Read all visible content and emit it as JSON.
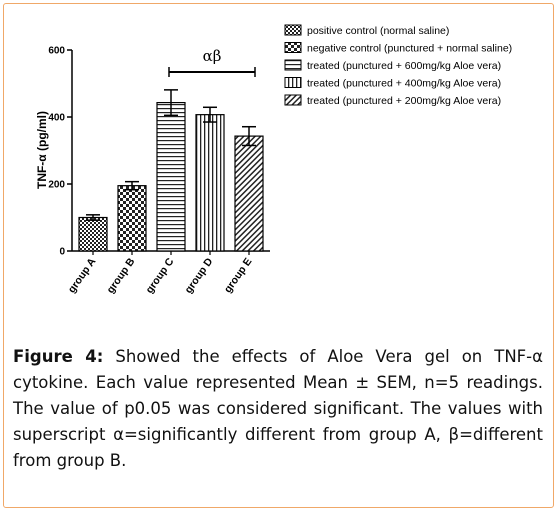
{
  "chart_data": {
    "type": "bar",
    "categories": [
      "group A",
      "group B",
      "group C",
      "group D",
      "group E"
    ],
    "values": [
      100,
      195,
      443,
      407,
      343
    ],
    "errors": [
      8,
      12,
      38,
      22,
      28
    ],
    "ylabel": "TNF-α (pg/ml)",
    "ylim": [
      0,
      600
    ],
    "yticks": [
      0,
      200,
      400,
      600
    ],
    "grid": false,
    "legend_position": "top-right",
    "legend": [
      {
        "label": "positive control (normal saline)",
        "pattern": "checker-fine"
      },
      {
        "label": "negative control (punctured + normal saline)",
        "pattern": "checker-coarse"
      },
      {
        "label": "treated (punctured + 600mg/kg Aloe vera)",
        "pattern": "horizontal"
      },
      {
        "label": "treated (punctured + 400mg/kg Aloe vera)",
        "pattern": "vertical"
      },
      {
        "label": "treated (punctured + 200mg/kg Aloe vera)",
        "pattern": "diagonal"
      }
    ],
    "significance": {
      "label": "αβ",
      "from_category": "group C",
      "to_category": "group E"
    }
  },
  "caption": {
    "figure_label": "Figure 4:",
    "text": "Showed the effects of Aloe Vera gel on TNF-α cytokine. Each value represented Mean ± SEM, n=5 readings. The value of p0.05 was considered significant. The values with superscript α=significantly different from group A, β=different from group B."
  },
  "colors": {
    "frame_border": "#f0a868",
    "ink": "#000000"
  }
}
